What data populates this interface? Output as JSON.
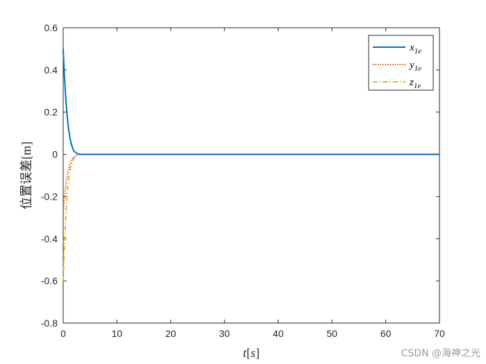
{
  "chart_data": {
    "type": "line",
    "xlabel": "t[s]",
    "ylabel": "位置误差[m]",
    "xlim": [
      0,
      70
    ],
    "ylim": [
      -0.8,
      0.6
    ],
    "xticks": [
      "0",
      "10",
      "20",
      "30",
      "40",
      "50",
      "60",
      "70"
    ],
    "yticks": [
      "0.6",
      "0.4",
      "0.2",
      "0",
      "-0.2",
      "-0.4",
      "-0.6",
      "-0.8"
    ],
    "grid": false,
    "legend_position": "top-right",
    "series": [
      {
        "name": "x1e",
        "color": "#0072BD",
        "style": "solid",
        "points": [
          [
            0,
            0.5
          ],
          [
            0.25,
            0.36
          ],
          [
            0.5,
            0.26
          ],
          [
            0.75,
            0.18
          ],
          [
            1.0,
            0.12
          ],
          [
            1.25,
            0.08
          ],
          [
            1.5,
            0.05
          ],
          [
            1.75,
            0.03
          ],
          [
            2.0,
            0.015
          ],
          [
            2.5,
            0.005
          ],
          [
            3,
            0.0
          ],
          [
            70,
            0.0
          ]
        ]
      },
      {
        "name": "y1e",
        "color": "#D95319",
        "style": "dotted",
        "points": [
          [
            0,
            -0.28
          ],
          [
            0.25,
            -0.2
          ],
          [
            0.5,
            -0.14
          ],
          [
            0.75,
            -0.1
          ],
          [
            1.0,
            -0.07
          ],
          [
            1.25,
            -0.045
          ],
          [
            1.5,
            -0.03
          ],
          [
            2.0,
            -0.015
          ],
          [
            2.5,
            -0.005
          ],
          [
            3,
            0.0
          ],
          [
            70,
            0.0
          ]
        ]
      },
      {
        "name": "z1e",
        "color": "#EDB120",
        "style": "dashdot",
        "points": [
          [
            0,
            -0.6
          ],
          [
            0.25,
            -0.42
          ],
          [
            0.5,
            -0.28
          ],
          [
            0.75,
            -0.18
          ],
          [
            1.0,
            -0.12
          ],
          [
            1.25,
            -0.08
          ],
          [
            1.5,
            -0.05
          ],
          [
            1.75,
            -0.03
          ],
          [
            2.0,
            -0.015
          ],
          [
            2.5,
            -0.005
          ],
          [
            3,
            0.0
          ],
          [
            70,
            0.0
          ]
        ]
      }
    ],
    "legend_labels": [
      {
        "base": "x",
        "sub": "1e"
      },
      {
        "base": "y",
        "sub": "1e"
      },
      {
        "base": "z",
        "sub": "1e"
      }
    ]
  },
  "watermark": "CSDN @海神之光"
}
